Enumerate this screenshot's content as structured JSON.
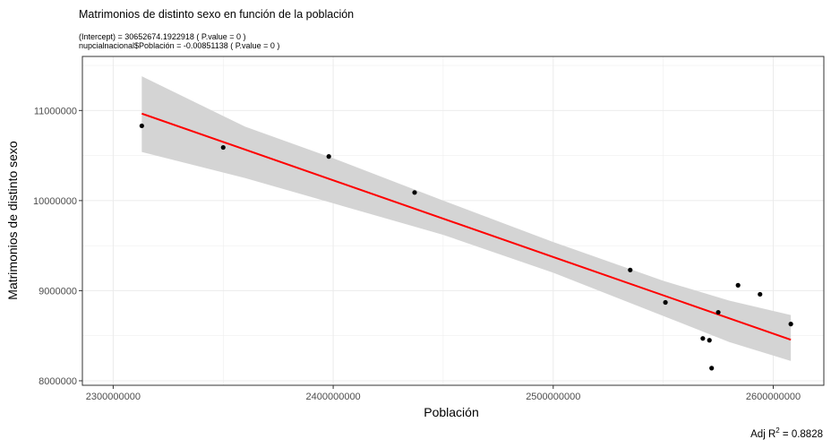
{
  "chart_data": {
    "type": "scatter",
    "title": "Matrimonios de distinto sexo en función de la población",
    "subtitle_lines": [
      "(Intercept) = 30652674.1922918 ( P.value = 0 )",
      "nupcialnacional$Población = -0.00851138 ( P.value = 0 )"
    ],
    "xlabel": "Población",
    "ylabel": "Matrimonios de distinto sexo",
    "caption_prefix": "Adj R",
    "caption_sup": "2",
    "caption_value": " = 0.8828",
    "xlim": [
      2286000000,
      2623000000
    ],
    "ylim": [
      7950000,
      11600000
    ],
    "x_ticks": [
      2300000000,
      2400000000,
      2500000000,
      2600000000
    ],
    "x_tick_labels": [
      "2300000000",
      "2400000000",
      "2500000000",
      "2600000000"
    ],
    "y_ticks": [
      8000000,
      9000000,
      10000000,
      11000000
    ],
    "y_tick_labels": [
      "8000000",
      "9000000",
      "10000000",
      "11000000"
    ],
    "grid": true,
    "points": [
      {
        "x": 2313000000,
        "y": 10830000
      },
      {
        "x": 2350000000,
        "y": 10590000
      },
      {
        "x": 2398000000,
        "y": 10490000
      },
      {
        "x": 2437000000,
        "y": 10090000
      },
      {
        "x": 2535000000,
        "y": 9230000
      },
      {
        "x": 2551000000,
        "y": 8870000
      },
      {
        "x": 2568000000,
        "y": 8470000
      },
      {
        "x": 2571000000,
        "y": 8450000
      },
      {
        "x": 2572000000,
        "y": 8140000
      },
      {
        "x": 2575000000,
        "y": 8760000
      },
      {
        "x": 2584000000,
        "y": 9060000
      },
      {
        "x": 2594000000,
        "y": 8960000
      },
      {
        "x": 2608000000,
        "y": 8630000
      }
    ],
    "regression": {
      "intercept": 30652674.1922918,
      "slope": -0.00851138
    },
    "confidence_band": [
      {
        "x": 2313000000,
        "lower": 10540000,
        "upper": 11380000
      },
      {
        "x": 2360000000,
        "lower": 10250000,
        "upper": 10820000
      },
      {
        "x": 2400000000,
        "lower": 9970000,
        "upper": 10470000
      },
      {
        "x": 2450000000,
        "lower": 9620000,
        "upper": 10000000
      },
      {
        "x": 2500000000,
        "lower": 9200000,
        "upper": 9540000
      },
      {
        "x": 2550000000,
        "lower": 8720000,
        "upper": 9110000
      },
      {
        "x": 2580000000,
        "lower": 8430000,
        "upper": 8890000
      },
      {
        "x": 2608000000,
        "lower": 8220000,
        "upper": 8730000
      }
    ],
    "colors": {
      "point": "#000000",
      "line": "#ff0000",
      "band": "#d4d4d4",
      "grid": "#ebebeb",
      "panel_border": "#333333"
    }
  }
}
